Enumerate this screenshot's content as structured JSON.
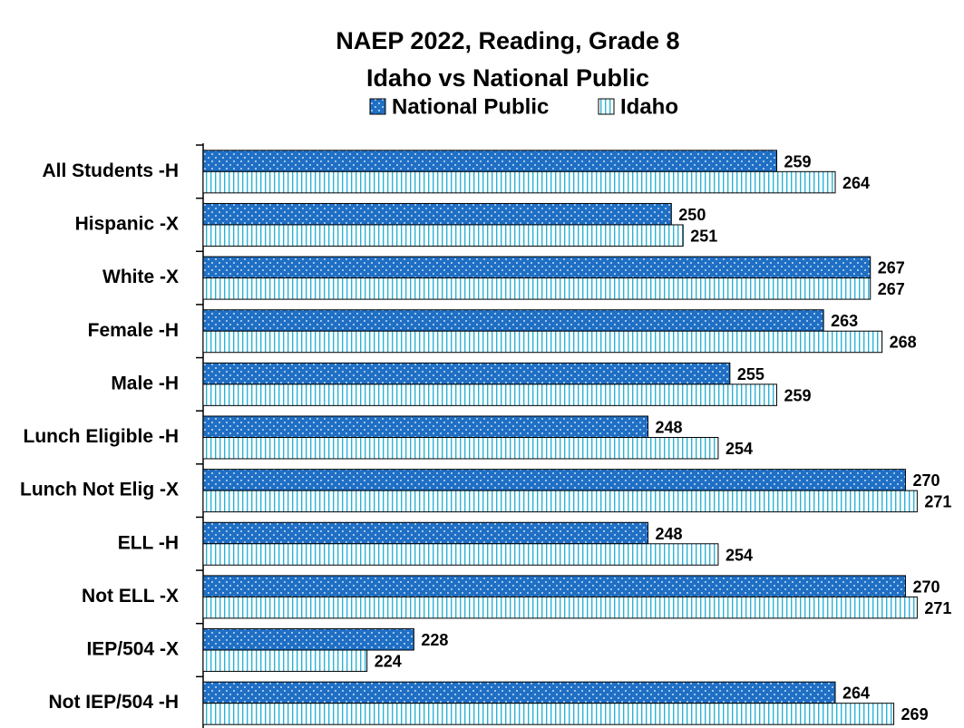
{
  "chart_data": {
    "type": "hbar",
    "title": "NAEP 2022, Reading, Grade 8",
    "subtitle": "Idaho vs National Public",
    "categories": [
      "All Students -H",
      "Hispanic -X",
      "White -X",
      "Female -H",
      "Male -H",
      "Lunch Eligible -H",
      "Lunch Not Elig -X",
      "ELL -H",
      "Not ELL -X",
      "IEP/504 -X",
      "Not IEP/504 -H"
    ],
    "series": [
      {
        "name": "National Public",
        "color": "#1f6fc5",
        "pattern": "dots",
        "values": [
          259,
          250,
          267,
          263,
          255,
          248,
          270,
          248,
          270,
          228,
          264
        ]
      },
      {
        "name": "Idaho",
        "color": "#2bb3d6",
        "pattern": "vertical-lines",
        "values": [
          264,
          251,
          267,
          268,
          259,
          254,
          271,
          254,
          271,
          224,
          269
        ]
      }
    ],
    "xlim": [
      210,
      275
    ],
    "legend": "top"
  }
}
